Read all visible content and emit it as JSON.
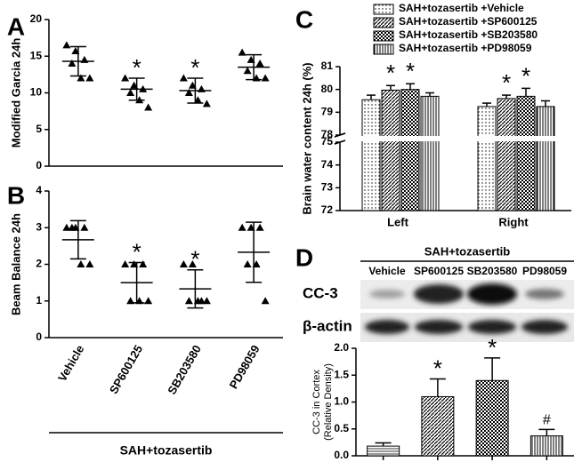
{
  "chart_data": [
    {
      "type": "dotplot",
      "panel_label": "A",
      "ylabel": "Modified Garcia 24h",
      "ylim": [
        0,
        20
      ],
      "yticks": [
        0,
        5,
        10,
        15,
        20
      ],
      "groups": [
        {
          "points": [
            16.5,
            15.7,
            14.5,
            14,
            12,
            12
          ],
          "mean": 14.3,
          "sd": 2
        },
        {
          "points": [
            12,
            11,
            10.5,
            10,
            9,
            8
          ],
          "mean": 10.5,
          "sd": 1.5,
          "annotation": "*"
        },
        {
          "points": [
            12,
            11,
            10.5,
            10,
            9,
            8.5
          ],
          "mean": 10.3,
          "sd": 1.7,
          "annotation": "*"
        },
        {
          "points": [
            15.5,
            14.5,
            14,
            13,
            12,
            12
          ],
          "mean": 13.5,
          "sd": 1.7
        }
      ]
    },
    {
      "type": "dotplot",
      "panel_label": "B",
      "ylabel": "Beam Balance 24h",
      "xlabel": "SAH+tozasertib",
      "ylim": [
        0,
        4
      ],
      "yticks": [
        0,
        1,
        2,
        3,
        4
      ],
      "categories": [
        "Vehicle",
        "SP600125",
        "SB203580",
        "PD98059"
      ],
      "groups": [
        {
          "points": [
            3,
            3,
            3,
            3,
            2,
            2
          ],
          "mean": 2.67,
          "sd": 0.52
        },
        {
          "points": [
            2,
            2,
            2,
            1,
            1,
            1
          ],
          "mean": 1.5,
          "sd": 0.55,
          "annotation": "*"
        },
        {
          "points": [
            2,
            2,
            1,
            1,
            1,
            1
          ],
          "mean": 1.33,
          "sd": 0.52,
          "annotation": "*"
        },
        {
          "points": [
            3,
            3,
            3,
            2,
            2,
            1
          ],
          "mean": 2.33,
          "sd": 0.82
        }
      ]
    },
    {
      "type": "bar",
      "panel_label": "C",
      "ylabel": "Brain water content 24h (%)",
      "ylim": [
        72,
        81
      ],
      "axis_break": [
        75,
        78
      ],
      "yticks": [
        72,
        73,
        74,
        75,
        78,
        79,
        80,
        81
      ],
      "categories": [
        "Left",
        "Right"
      ],
      "series": [
        {
          "name": "SAH+tozasertib +Vehicle",
          "pattern": "dots",
          "values": [
            79.55,
            79.25
          ],
          "errors": [
            0.2,
            0.15
          ]
        },
        {
          "name": "SAH+tozasertib +SP600125",
          "pattern": "diagonal",
          "values": [
            79.97,
            79.6
          ],
          "errors": [
            0.2,
            0.15
          ],
          "annotations": [
            "*",
            "*"
          ]
        },
        {
          "name": "SAH+tozasertib +SB203580",
          "pattern": "checker",
          "values": [
            80.0,
            79.7
          ],
          "errors": [
            0.25,
            0.35
          ],
          "annotations": [
            "*",
            "*"
          ]
        },
        {
          "name": "SAH+tozasertib +PD98059",
          "pattern": "vertical",
          "values": [
            79.7,
            79.25
          ],
          "errors": [
            0.15,
            0.25
          ]
        }
      ]
    },
    {
      "type": "bar",
      "panel_label": "D",
      "ylabel": [
        "CC-3 in Cortex",
        "(Relative Density)"
      ],
      "ylim": [
        0,
        2
      ],
      "yticks": [
        {
          "value": 0,
          "label": "0.0"
        },
        0.5,
        {
          "value": 1,
          "label": "1.0"
        },
        1.5,
        {
          "value": 2,
          "label": "2.0"
        }
      ],
      "patterns": [
        "horizontal",
        "diagonal",
        "checker",
        "vertical"
      ],
      "values": [
        0.18,
        1.1,
        1.4,
        0.37
      ],
      "errors": [
        0.06,
        0.33,
        0.42,
        0.12
      ],
      "annotations": [
        null,
        "*",
        "*",
        "#"
      ],
      "blot": {
        "header": "SAH+tozasertib",
        "lanes": [
          "Vehicle",
          "SP600125",
          "SB203580",
          "PD98059"
        ],
        "rows": [
          "CC-3",
          "β-actin"
        ]
      }
    }
  ]
}
